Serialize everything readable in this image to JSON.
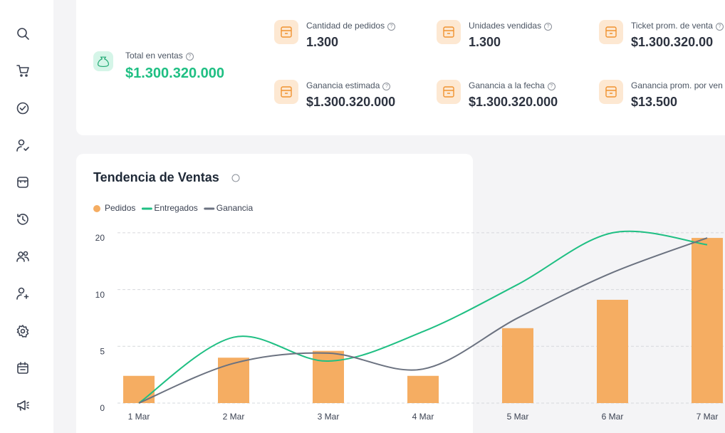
{
  "total": {
    "label": "Total en ventas",
    "value": "$1.300.320.000"
  },
  "stats": [
    {
      "label": "Cantidad de pedidos",
      "value": "1.300"
    },
    {
      "label": "Unidades vendidas",
      "value": "1.300"
    },
    {
      "label": "Ticket prom. de venta",
      "value": "$1.300.320.00"
    },
    {
      "label": "Ganancia estimada",
      "value": "$1.300.320.000"
    },
    {
      "label": "Ganancia a la fecha",
      "value": "$1.300.320.000"
    },
    {
      "label": "Ganancia prom. por ven",
      "value": "$13.500"
    }
  ],
  "chart_data": {
    "type": "combo",
    "title": "Tendencia de Ventas",
    "categories": [
      "1 Mar",
      "2 Mar",
      "3 Mar",
      "4 Mar",
      "5 Mar",
      "6 Mar",
      "7 Mar"
    ],
    "series": [
      {
        "name": "Pedidos",
        "type": "bar",
        "color": "#f5ad62",
        "values": [
          2.4,
          4.0,
          4.6,
          2.4,
          6.6,
          9.1,
          19.1
        ]
      },
      {
        "name": "Entregados",
        "type": "line",
        "color": "#1fbf83",
        "values": [
          0,
          5.8,
          3.7,
          6.3,
          10.9,
          20,
          17.9
        ]
      },
      {
        "name": "Ganancia",
        "type": "line",
        "color": "#6b7280",
        "values": [
          0,
          3.5,
          4.4,
          3.0,
          7.5,
          13,
          19.1
        ]
      }
    ],
    "ylim": [
      0,
      20
    ],
    "yticks": [
      0,
      5,
      10,
      20
    ],
    "grid": true
  }
}
